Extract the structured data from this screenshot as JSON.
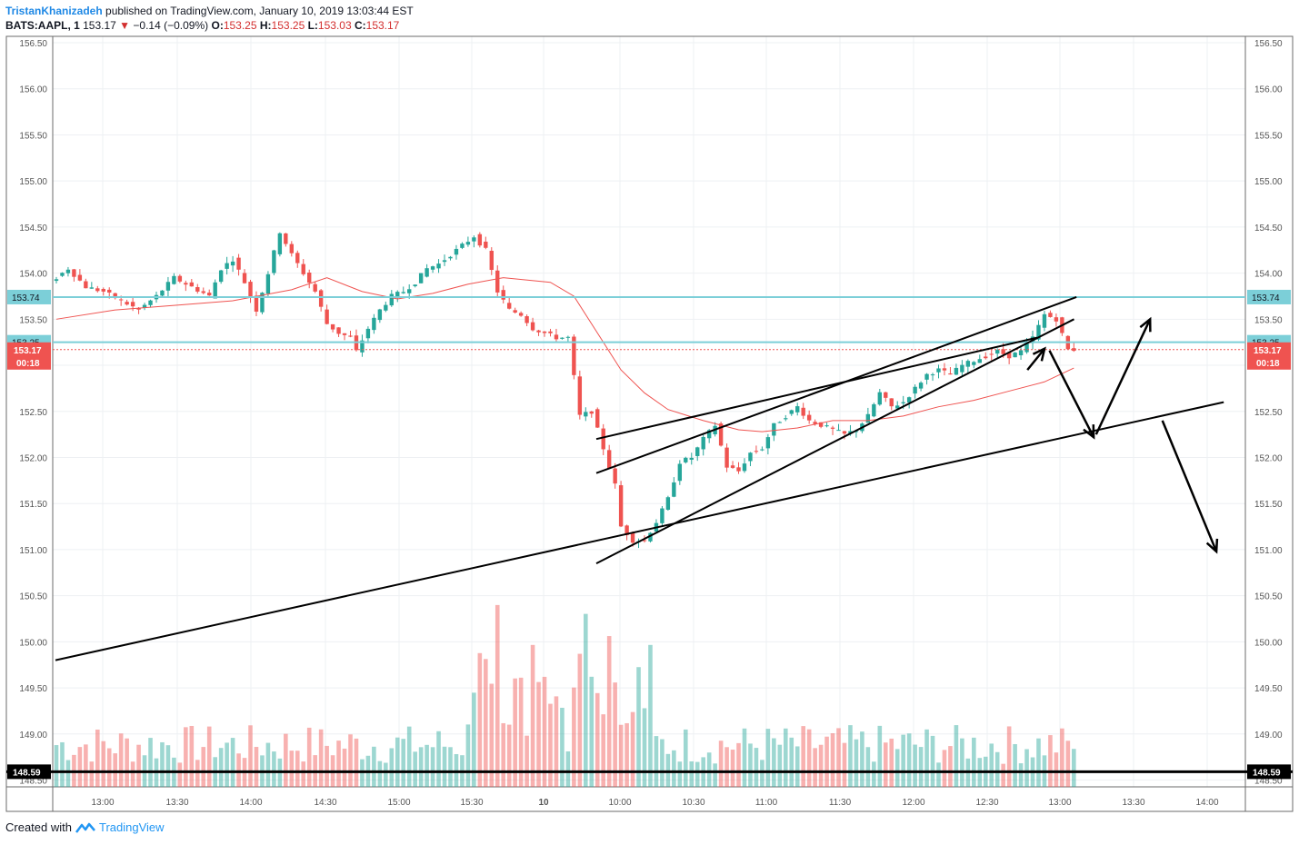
{
  "header": {
    "author": "TristanKhanizadeh",
    "published": "published on TradingView.com, January 10, 2019 13:03:44 EST",
    "symbol": "BATS:AAPL, 1",
    "last": "153.17",
    "change": "−0.14 (−0.09%)",
    "o_label": "O:",
    "o_value": "153.25",
    "h_label": "H:",
    "h_value": "153.25",
    "l_label": "L:",
    "l_value": "153.03",
    "c_label": "C:",
    "c_value": "153.17"
  },
  "footer": {
    "created_with": "Created with",
    "brand": "TradingView"
  },
  "colors": {
    "up": "#26a69a",
    "down": "#ef5350",
    "ma": "#ef5350",
    "level": "#7ccfd8",
    "trend": "#000000"
  },
  "chart_data": {
    "type": "candlestick",
    "price_axis": {
      "ticks": [
        "156.50",
        "156.00",
        "155.50",
        "155.00",
        "154.50",
        "154.00",
        "153.50",
        "153.00",
        "152.50",
        "152.00",
        "151.50",
        "151.00",
        "150.50",
        "150.00",
        "149.50",
        "149.00",
        "148.50"
      ],
      "range": [
        148.4,
        156.55
      ]
    },
    "time_axis": {
      "ticks": [
        "13:00",
        "13:30",
        "14:00",
        "14:30",
        "15:00",
        "15:30",
        "10",
        "10:00",
        "10:30",
        "11:00",
        "11:30",
        "12:00",
        "12:30",
        "13:00",
        "13:30",
        "14:00"
      ]
    },
    "levels": [
      {
        "price": 153.74,
        "label": "153.74"
      },
      {
        "price": 153.25,
        "label": "153.25"
      }
    ],
    "last_price": {
      "price": 153.17,
      "label": "153.17",
      "countdown": "00:18"
    },
    "support_line": {
      "price": 148.59,
      "label": "148.59"
    },
    "price_path": [
      [
        0,
        153.9
      ],
      [
        3,
        154.05
      ],
      [
        6,
        153.85
      ],
      [
        9,
        153.8
      ],
      [
        12,
        153.7
      ],
      [
        15,
        153.6
      ],
      [
        18,
        153.75
      ],
      [
        21,
        153.95
      ],
      [
        24,
        153.85
      ],
      [
        27,
        153.75
      ],
      [
        29,
        154.05
      ],
      [
        31,
        154.15
      ],
      [
        33,
        153.9
      ],
      [
        35,
        153.6
      ],
      [
        37,
        154.0
      ],
      [
        39,
        154.45
      ],
      [
        41,
        154.2
      ],
      [
        43,
        154.0
      ],
      [
        45,
        153.8
      ],
      [
        47,
        153.45
      ],
      [
        49,
        153.35
      ],
      [
        51,
        153.3
      ],
      [
        52,
        153.15
      ],
      [
        54,
        153.4
      ],
      [
        56,
        153.6
      ],
      [
        58,
        153.75
      ],
      [
        60,
        153.8
      ],
      [
        62,
        153.9
      ],
      [
        64,
        154.05
      ],
      [
        66,
        154.1
      ],
      [
        68,
        154.2
      ],
      [
        70,
        154.3
      ],
      [
        72,
        154.4
      ],
      [
        74,
        154.25
      ],
      [
        76,
        153.8
      ],
      [
        78,
        153.6
      ],
      [
        80,
        153.55
      ],
      [
        82,
        153.4
      ],
      [
        84,
        153.35
      ],
      [
        86,
        153.3
      ],
      [
        88,
        153.3
      ],
      [
        90,
        152.45
      ],
      [
        92,
        152.5
      ],
      [
        94,
        152.1
      ],
      [
        96,
        151.7
      ],
      [
        97,
        151.25
      ],
      [
        99,
        151.1
      ],
      [
        101,
        151.1
      ],
      [
        103,
        151.3
      ],
      [
        105,
        151.55
      ],
      [
        107,
        151.95
      ],
      [
        109,
        152.0
      ],
      [
        111,
        152.2
      ],
      [
        113,
        152.35
      ],
      [
        115,
        151.9
      ],
      [
        117,
        151.85
      ],
      [
        119,
        152.05
      ],
      [
        121,
        152.1
      ],
      [
        123,
        152.35
      ],
      [
        125,
        152.45
      ],
      [
        127,
        152.55
      ],
      [
        129,
        152.4
      ],
      [
        131,
        152.35
      ],
      [
        133,
        152.3
      ],
      [
        135,
        152.25
      ],
      [
        137,
        152.3
      ],
      [
        139,
        152.45
      ],
      [
        141,
        152.7
      ],
      [
        143,
        152.55
      ],
      [
        145,
        152.6
      ],
      [
        147,
        152.75
      ],
      [
        149,
        152.9
      ],
      [
        151,
        152.95
      ],
      [
        153,
        152.9
      ],
      [
        155,
        153.0
      ],
      [
        157,
        153.05
      ],
      [
        159,
        153.1
      ],
      [
        161,
        153.15
      ],
      [
        163,
        153.1
      ],
      [
        165,
        153.15
      ],
      [
        167,
        153.3
      ],
      [
        169,
        153.55
      ],
      [
        171,
        153.5
      ],
      [
        173,
        153.17
      ]
    ],
    "sma_path": [
      [
        0,
        153.5
      ],
      [
        10,
        153.6
      ],
      [
        20,
        153.65
      ],
      [
        30,
        153.7
      ],
      [
        40,
        153.82
      ],
      [
        46,
        153.95
      ],
      [
        52,
        153.8
      ],
      [
        58,
        153.72
      ],
      [
        64,
        153.78
      ],
      [
        70,
        153.88
      ],
      [
        76,
        153.95
      ],
      [
        84,
        153.9
      ],
      [
        88,
        153.75
      ],
      [
        92,
        153.35
      ],
      [
        96,
        152.95
      ],
      [
        100,
        152.7
      ],
      [
        104,
        152.52
      ],
      [
        110,
        152.4
      ],
      [
        116,
        152.3
      ],
      [
        120,
        152.28
      ],
      [
        126,
        152.32
      ],
      [
        132,
        152.4
      ],
      [
        138,
        152.4
      ],
      [
        144,
        152.45
      ],
      [
        150,
        152.55
      ],
      [
        156,
        152.62
      ],
      [
        162,
        152.72
      ],
      [
        168,
        152.82
      ],
      [
        173,
        152.97
      ]
    ],
    "volume": {
      "scale_max": 210
    },
    "annotations": {
      "trendlines": [
        {
          "from": [
            "12:25",
            149.8
          ],
          "to": [
            "14:06",
            152.6
          ]
        },
        {
          "from": [
            "09:50",
            151.83
          ],
          "to": [
            "13:06",
            153.74
          ]
        },
        {
          "from": [
            "09:50",
            150.85
          ],
          "to": [
            "13:05",
            153.5
          ]
        },
        {
          "from": [
            "09:50",
            152.2
          ],
          "to": [
            "12:50",
            153.3
          ]
        }
      ],
      "arrows": [
        {
          "from": [
            "12:46",
            152.95
          ],
          "to": [
            "12:53",
            153.18
          ]
        },
        {
          "from": [
            "12:55",
            153.16
          ],
          "to": [
            "13:13",
            152.22
          ]
        },
        {
          "from": [
            "13:14",
            152.25
          ],
          "to": [
            "13:36",
            153.5
          ]
        },
        {
          "from": [
            "13:41",
            152.4
          ],
          "to": [
            "14:03",
            150.98
          ]
        }
      ]
    }
  }
}
